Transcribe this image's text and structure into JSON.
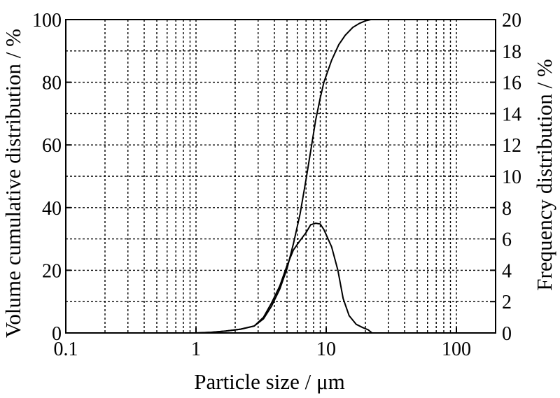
{
  "chart_data": {
    "type": "line",
    "title": "",
    "xlabel": "Particle size / μm",
    "ylabel_left": "Volume cumulative distribution / %",
    "ylabel_right": "Frequency distribution / %",
    "x_scale": "log",
    "xlim": [
      0.1,
      200
    ],
    "ylim_left": [
      0,
      100
    ],
    "ylim_right": [
      0,
      20
    ],
    "grid": true,
    "x_ticks": [
      {
        "value": 0.1,
        "label": "0.1"
      },
      {
        "value": 1,
        "label": "1"
      },
      {
        "value": 10,
        "label": "10"
      },
      {
        "value": 100,
        "label": "100"
      }
    ],
    "y_left_ticks": [
      {
        "value": 0,
        "label": "0"
      },
      {
        "value": 20,
        "label": "20"
      },
      {
        "value": 40,
        "label": "40"
      },
      {
        "value": 60,
        "label": "60"
      },
      {
        "value": 80,
        "label": "80"
      },
      {
        "value": 100,
        "label": "100"
      }
    ],
    "y_right_ticks": [
      {
        "value": 0,
        "label": "0"
      },
      {
        "value": 2,
        "label": "2"
      },
      {
        "value": 4,
        "label": "4"
      },
      {
        "value": 6,
        "label": "6"
      },
      {
        "value": 8,
        "label": "8"
      },
      {
        "value": 10,
        "label": "10"
      },
      {
        "value": 12,
        "label": "12"
      },
      {
        "value": 14,
        "label": "14"
      },
      {
        "value": 16,
        "label": "16"
      },
      {
        "value": 18,
        "label": "18"
      },
      {
        "value": 20,
        "label": "20"
      }
    ],
    "series": [
      {
        "axis": "left",
        "points": [
          [
            1,
            0
          ],
          [
            1.3,
            0.2
          ],
          [
            1.7,
            0.6
          ],
          [
            2.2,
            1.2
          ],
          [
            2.8,
            2.2
          ],
          [
            3.3,
            4.5
          ],
          [
            3.8,
            8.5
          ],
          [
            4.4,
            14
          ],
          [
            5.0,
            20.5
          ],
          [
            5.6,
            28.5
          ],
          [
            6.3,
            38
          ],
          [
            7.0,
            49
          ],
          [
            7.6,
            58
          ],
          [
            8.3,
            68
          ],
          [
            9.0,
            75
          ],
          [
            9.6,
            80
          ],
          [
            11,
            87
          ],
          [
            12.5,
            92
          ],
          [
            14,
            95
          ],
          [
            16,
            97.5
          ],
          [
            18,
            98.8
          ],
          [
            20,
            99.6
          ],
          [
            22,
            100
          ]
        ]
      },
      {
        "axis": "right",
        "points": [
          [
            1,
            0
          ],
          [
            1.3,
            0.04
          ],
          [
            1.7,
            0.12
          ],
          [
            2.2,
            0.24
          ],
          [
            2.8,
            0.44
          ],
          [
            3.3,
            1.0
          ],
          [
            3.8,
            1.9
          ],
          [
            4.4,
            3.0
          ],
          [
            5.0,
            4.3
          ],
          [
            5.6,
            5.3
          ],
          [
            6.3,
            5.9
          ],
          [
            7.0,
            6.4
          ],
          [
            7.6,
            6.9
          ],
          [
            8.3,
            7.0
          ],
          [
            9.0,
            6.95
          ],
          [
            9.6,
            6.6
          ],
          [
            11,
            5.5
          ],
          [
            12.3,
            4.0
          ],
          [
            13.5,
            2.2
          ],
          [
            15,
            1.1
          ],
          [
            17,
            0.55
          ],
          [
            19,
            0.35
          ],
          [
            21,
            0.2
          ],
          [
            22.5,
            0
          ]
        ]
      }
    ]
  }
}
